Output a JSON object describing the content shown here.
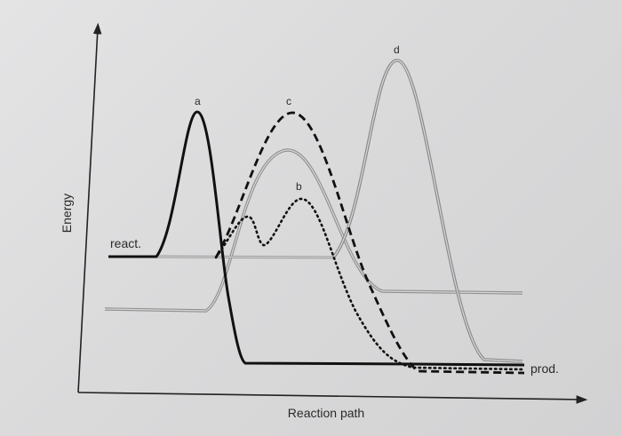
{
  "axes": {
    "ylabel": "Energy",
    "xlabel": "Reaction path"
  },
  "labels": {
    "react": "react.",
    "prod": "prod."
  },
  "curves": [
    {
      "id": "a",
      "label": "a",
      "style": "solid-bold",
      "color": "#111111"
    },
    {
      "id": "b",
      "label": "b",
      "style": "dotted",
      "color": "#111111"
    },
    {
      "id": "c",
      "label": "c",
      "style": "dashed-bold",
      "color": "#111111"
    },
    {
      "id": "d",
      "label": "d",
      "style": "double-gray",
      "color": "#8a8a8a"
    },
    {
      "id": "e",
      "label": "",
      "style": "double-gray",
      "color": "#9a9a9a"
    }
  ]
}
